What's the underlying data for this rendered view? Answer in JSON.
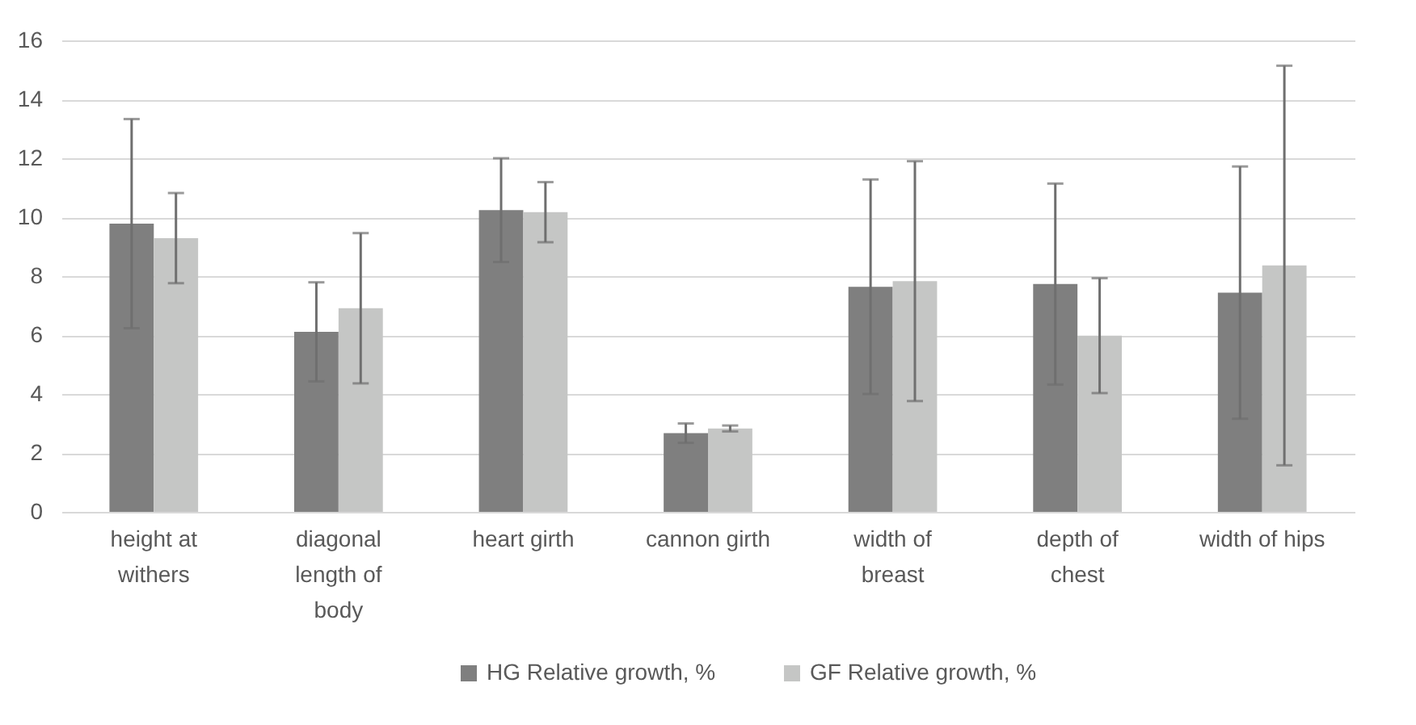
{
  "chart_data": {
    "type": "bar",
    "categories": [
      "height at withers",
      "diagonal length of body",
      "heart girth",
      "cannon girth",
      "width of breast",
      "depth of chest",
      "width of hips"
    ],
    "series": [
      {
        "name": "HG Relative growth, %",
        "color": "#7f7f7f",
        "values": [
          9.78,
          6.11,
          10.24,
          2.67,
          7.64,
          7.73,
          7.44
        ],
        "errors": [
          3.55,
          1.68,
          1.76,
          0.33,
          3.64,
          3.41,
          4.28
        ]
      },
      {
        "name": "GF Relative growth, %",
        "color": "#c5c6c5",
        "values": [
          9.29,
          6.91,
          10.17,
          2.83,
          7.83,
          5.98,
          8.36
        ],
        "errors": [
          1.53,
          2.55,
          1.02,
          0.1,
          4.07,
          1.95,
          6.78
        ]
      }
    ],
    "ylim": [
      0,
      16
    ],
    "yticks": [
      0,
      2,
      4,
      6,
      8,
      10,
      12,
      14,
      16
    ],
    "grid": "y",
    "legend": "bottom"
  }
}
